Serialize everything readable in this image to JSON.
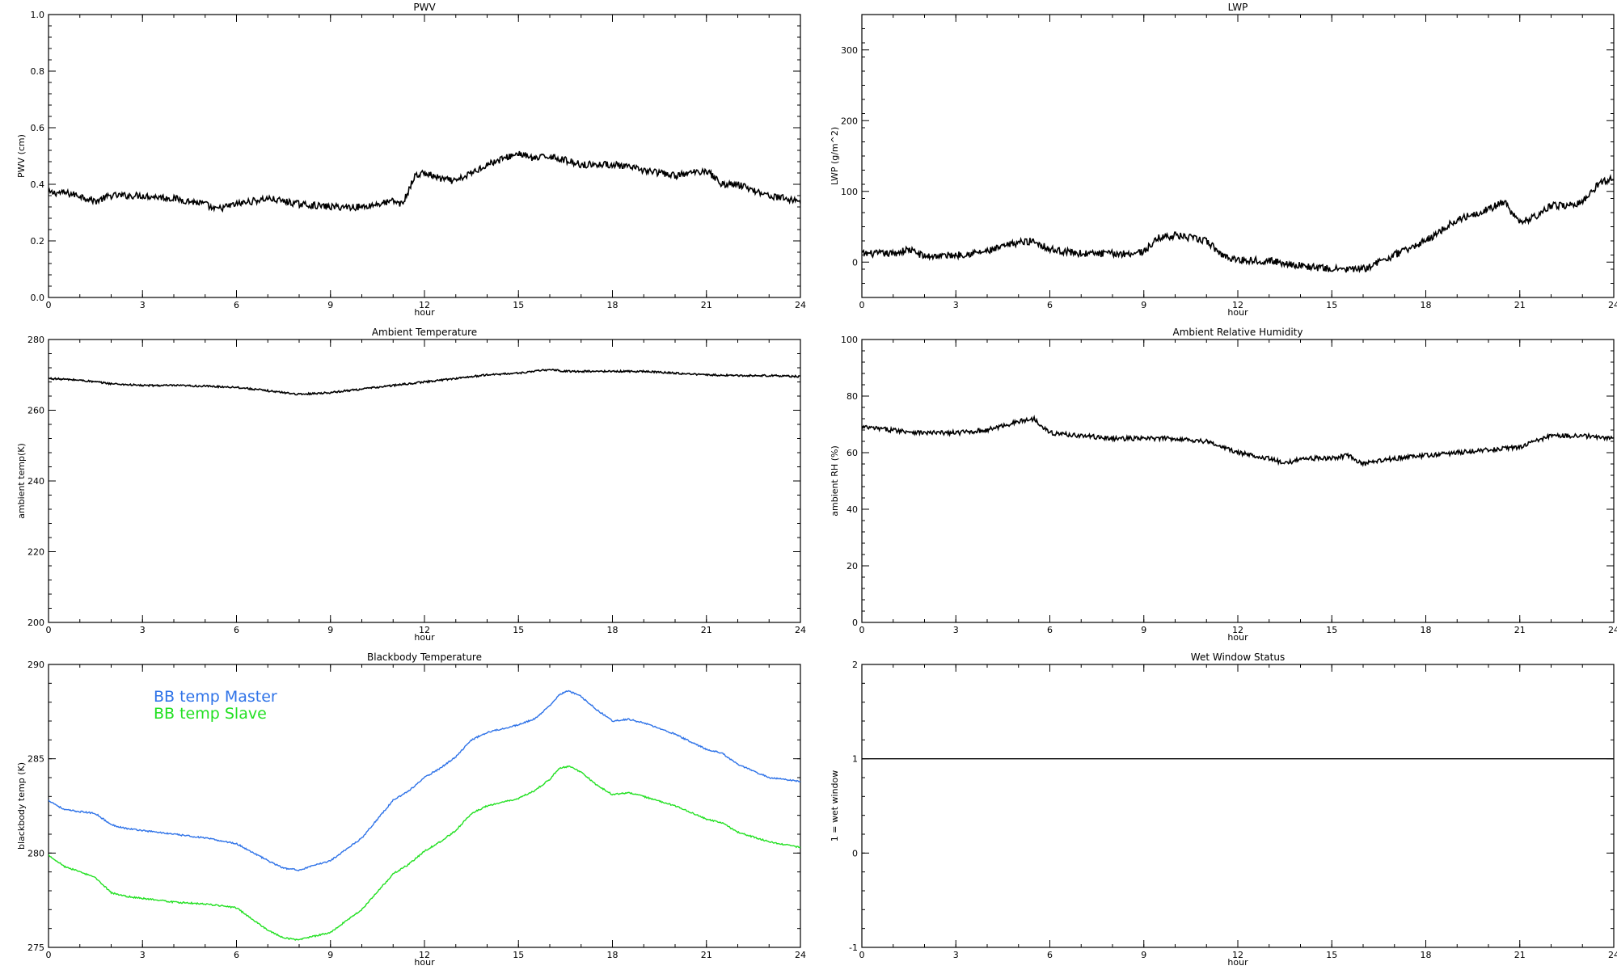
{
  "chart_data": [
    {
      "type": "line",
      "title": "PWV",
      "xlabel": "hour",
      "ylabel": "PWV (cm)",
      "xlim": [
        0,
        24
      ],
      "ylim": [
        0.0,
        1.0
      ],
      "xticks": [
        0,
        3,
        6,
        9,
        12,
        15,
        18,
        21,
        24
      ],
      "xticklabels": [
        "0",
        "3",
        "6",
        "9",
        "12",
        "15",
        "18",
        "21",
        "24"
      ],
      "yticks": [
        0.0,
        0.2,
        0.4,
        0.6,
        0.8,
        1.0
      ],
      "yticklabels": [
        "0.0",
        "0.2",
        "0.4",
        "0.6",
        "0.8",
        "1.0"
      ],
      "grid": false,
      "series": [
        {
          "color": "#000000",
          "noise": 0.012,
          "x": [
            0,
            0.5,
            1,
            1.5,
            2,
            3,
            4,
            5,
            5.3,
            6,
            7,
            8,
            9,
            10,
            11,
            11.3,
            11.7,
            12,
            12.5,
            13,
            13.5,
            14,
            14.5,
            15,
            15.5,
            16,
            17,
            18,
            19,
            20,
            21,
            21.5,
            22,
            23,
            24
          ],
          "y": [
            0.37,
            0.37,
            0.36,
            0.34,
            0.36,
            0.36,
            0.35,
            0.33,
            0.31,
            0.33,
            0.35,
            0.33,
            0.32,
            0.32,
            0.34,
            0.33,
            0.43,
            0.44,
            0.42,
            0.41,
            0.44,
            0.47,
            0.49,
            0.51,
            0.49,
            0.5,
            0.47,
            0.47,
            0.45,
            0.43,
            0.45,
            0.4,
            0.4,
            0.36,
            0.34
          ]
        }
      ]
    },
    {
      "type": "line",
      "title": "LWP",
      "xlabel": "hour",
      "ylabel": "LWP (g/m^2)",
      "xlim": [
        0,
        24
      ],
      "ylim": [
        -50,
        350
      ],
      "xticks": [
        0,
        3,
        6,
        9,
        12,
        15,
        18,
        21,
        24
      ],
      "xticklabels": [
        "0",
        "3",
        "6",
        "9",
        "12",
        "15",
        "18",
        "21",
        "24"
      ],
      "yticks": [
        0,
        100,
        200,
        300
      ],
      "yticklabels": [
        "0",
        "100",
        "200",
        "300"
      ],
      "grid": false,
      "series": [
        {
          "color": "#000000",
          "noise": 5,
          "x": [
            0,
            1,
            1.5,
            2,
            3,
            4,
            5,
            5.5,
            6,
            7,
            8,
            8.5,
            9,
            9.5,
            10,
            11,
            11.5,
            12,
            13,
            14,
            15,
            16,
            17,
            18,
            19,
            20,
            20.5,
            21,
            21.5,
            22,
            22.5,
            23,
            23.5,
            24
          ],
          "y": [
            12,
            12,
            18,
            8,
            10,
            15,
            28,
            30,
            18,
            12,
            12,
            12,
            15,
            35,
            38,
            30,
            10,
            3,
            2,
            -5,
            -10,
            -10,
            10,
            30,
            60,
            75,
            85,
            55,
            65,
            80,
            80,
            85,
            110,
            120
          ]
        }
      ]
    },
    {
      "type": "line",
      "title": "Ambient Temperature",
      "xlabel": "hour",
      "ylabel": "ambient temp(K)",
      "xlim": [
        0,
        24
      ],
      "ylim": [
        200,
        280
      ],
      "xticks": [
        0,
        3,
        6,
        9,
        12,
        15,
        18,
        21,
        24
      ],
      "xticklabels": [
        "0",
        "3",
        "6",
        "9",
        "12",
        "15",
        "18",
        "21",
        "24"
      ],
      "yticks": [
        200,
        220,
        240,
        260,
        280
      ],
      "yticklabels": [
        "200",
        "220",
        "240",
        "260",
        "280"
      ],
      "grid": false,
      "series": [
        {
          "color": "#000000",
          "noise": 0.25,
          "x": [
            0,
            1,
            2,
            3,
            4,
            5,
            6,
            7,
            8,
            9,
            10,
            11,
            12,
            13,
            14,
            15,
            16,
            16.5,
            17,
            18,
            19,
            20,
            21,
            22,
            23,
            24
          ],
          "y": [
            269.0,
            268.5,
            267.5,
            267.0,
            267.0,
            266.8,
            266.5,
            265.5,
            264.5,
            265.0,
            266.0,
            267.0,
            268.0,
            269.0,
            270.0,
            270.5,
            271.5,
            271.0,
            271.0,
            271.0,
            271.0,
            270.5,
            270.0,
            269.8,
            269.8,
            269.5
          ]
        }
      ]
    },
    {
      "type": "line",
      "title": "Ambient Relative Humidity",
      "xlabel": "hour",
      "ylabel": "ambient RH (%)",
      "xlim": [
        0,
        24
      ],
      "ylim": [
        0,
        100
      ],
      "xticks": [
        0,
        3,
        6,
        9,
        12,
        15,
        18,
        21,
        24
      ],
      "xticklabels": [
        "0",
        "3",
        "6",
        "9",
        "12",
        "15",
        "18",
        "21",
        "24"
      ],
      "yticks": [
        0,
        20,
        40,
        60,
        80,
        100
      ],
      "yticklabels": [
        "0",
        "20",
        "40",
        "60",
        "80",
        "100"
      ],
      "grid": false,
      "series": [
        {
          "color": "#000000",
          "noise": 0.8,
          "x": [
            0,
            1,
            2,
            3,
            4,
            5,
            5.5,
            6,
            7,
            8,
            9,
            10,
            11,
            11.5,
            12,
            12.5,
            13,
            13.5,
            14,
            15,
            15.5,
            16,
            17,
            18,
            19,
            20,
            21,
            22,
            23,
            24
          ],
          "y": [
            69,
            68,
            67,
            67,
            68,
            71,
            72,
            67,
            66,
            65,
            65,
            65,
            64,
            62,
            60,
            59,
            58,
            56,
            58,
            58,
            59,
            56,
            58,
            59,
            60,
            61,
            62,
            66,
            66,
            65
          ]
        }
      ]
    },
    {
      "type": "line",
      "title": "Blackbody Temperature",
      "xlabel": "hour",
      "ylabel": "blackbody temp (K)",
      "xlim": [
        0,
        24
      ],
      "ylim": [
        275,
        290
      ],
      "xticks": [
        0,
        3,
        6,
        9,
        12,
        15,
        18,
        21,
        24
      ],
      "xticklabels": [
        "0",
        "3",
        "6",
        "9",
        "12",
        "15",
        "18",
        "21",
        "24"
      ],
      "yticks": [
        275,
        280,
        285,
        290
      ],
      "yticklabels": [
        "275",
        "280",
        "285",
        "290"
      ],
      "grid": false,
      "legend_position": "top-left",
      "series": [
        {
          "name": "BB temp Master",
          "color": "#2f73e8",
          "noise": 0.04,
          "x": [
            0,
            0.5,
            1,
            1.5,
            2,
            2.5,
            3,
            4,
            5,
            6,
            7,
            7.5,
            8,
            9,
            10,
            11,
            11.5,
            12,
            12.5,
            13,
            13.5,
            14,
            14.5,
            15,
            15.5,
            16,
            16.3,
            16.6,
            17,
            17.5,
            18,
            18.5,
            19,
            20,
            21,
            21.5,
            22,
            23,
            24
          ],
          "y": [
            282.8,
            282.3,
            282.2,
            282.1,
            281.5,
            281.3,
            281.2,
            281.0,
            280.8,
            280.5,
            279.6,
            279.2,
            279.1,
            279.6,
            280.8,
            282.8,
            283.3,
            284.0,
            284.5,
            285.1,
            286.0,
            286.4,
            286.6,
            286.8,
            287.1,
            287.8,
            288.4,
            288.6,
            288.3,
            287.6,
            287.0,
            287.1,
            286.9,
            286.3,
            285.5,
            285.3,
            284.7,
            284.0,
            283.8
          ]
        },
        {
          "name": "BB temp Slave",
          "color": "#22e022",
          "noise": 0.04,
          "x": [
            0,
            0.5,
            1,
            1.5,
            2,
            2.5,
            3,
            4,
            5,
            6,
            7,
            7.5,
            8,
            9,
            10,
            11,
            11.5,
            12,
            12.5,
            13,
            13.5,
            14,
            14.5,
            15,
            15.5,
            16,
            16.3,
            16.6,
            17,
            17.5,
            18,
            18.5,
            19,
            20,
            21,
            21.5,
            22,
            23,
            24
          ],
          "y": [
            279.9,
            279.3,
            279.0,
            278.7,
            277.9,
            277.7,
            277.6,
            277.4,
            277.3,
            277.1,
            275.9,
            275.5,
            275.4,
            275.8,
            277.0,
            278.9,
            279.4,
            280.1,
            280.6,
            281.2,
            282.1,
            282.5,
            282.7,
            282.9,
            283.3,
            283.9,
            284.5,
            284.6,
            284.3,
            283.6,
            283.1,
            283.2,
            283.0,
            282.5,
            281.8,
            281.6,
            281.1,
            280.6,
            280.3
          ]
        }
      ]
    },
    {
      "type": "line",
      "title": "Wet Window Status",
      "xlabel": "hour",
      "ylabel": "1 = wet window",
      "xlim": [
        0,
        24
      ],
      "ylim": [
        -1,
        2
      ],
      "xticks": [
        0,
        3,
        6,
        9,
        12,
        15,
        18,
        21,
        24
      ],
      "xticklabels": [
        "0",
        "3",
        "6",
        "9",
        "12",
        "15",
        "18",
        "21",
        "24"
      ],
      "yticks": [
        -1,
        0,
        1,
        2
      ],
      "yticklabels": [
        "-1",
        "0",
        "1",
        "2"
      ],
      "grid": false,
      "series": [
        {
          "color": "#000000",
          "noise": 0,
          "x": [
            0,
            24
          ],
          "y": [
            1,
            1
          ]
        }
      ]
    }
  ]
}
